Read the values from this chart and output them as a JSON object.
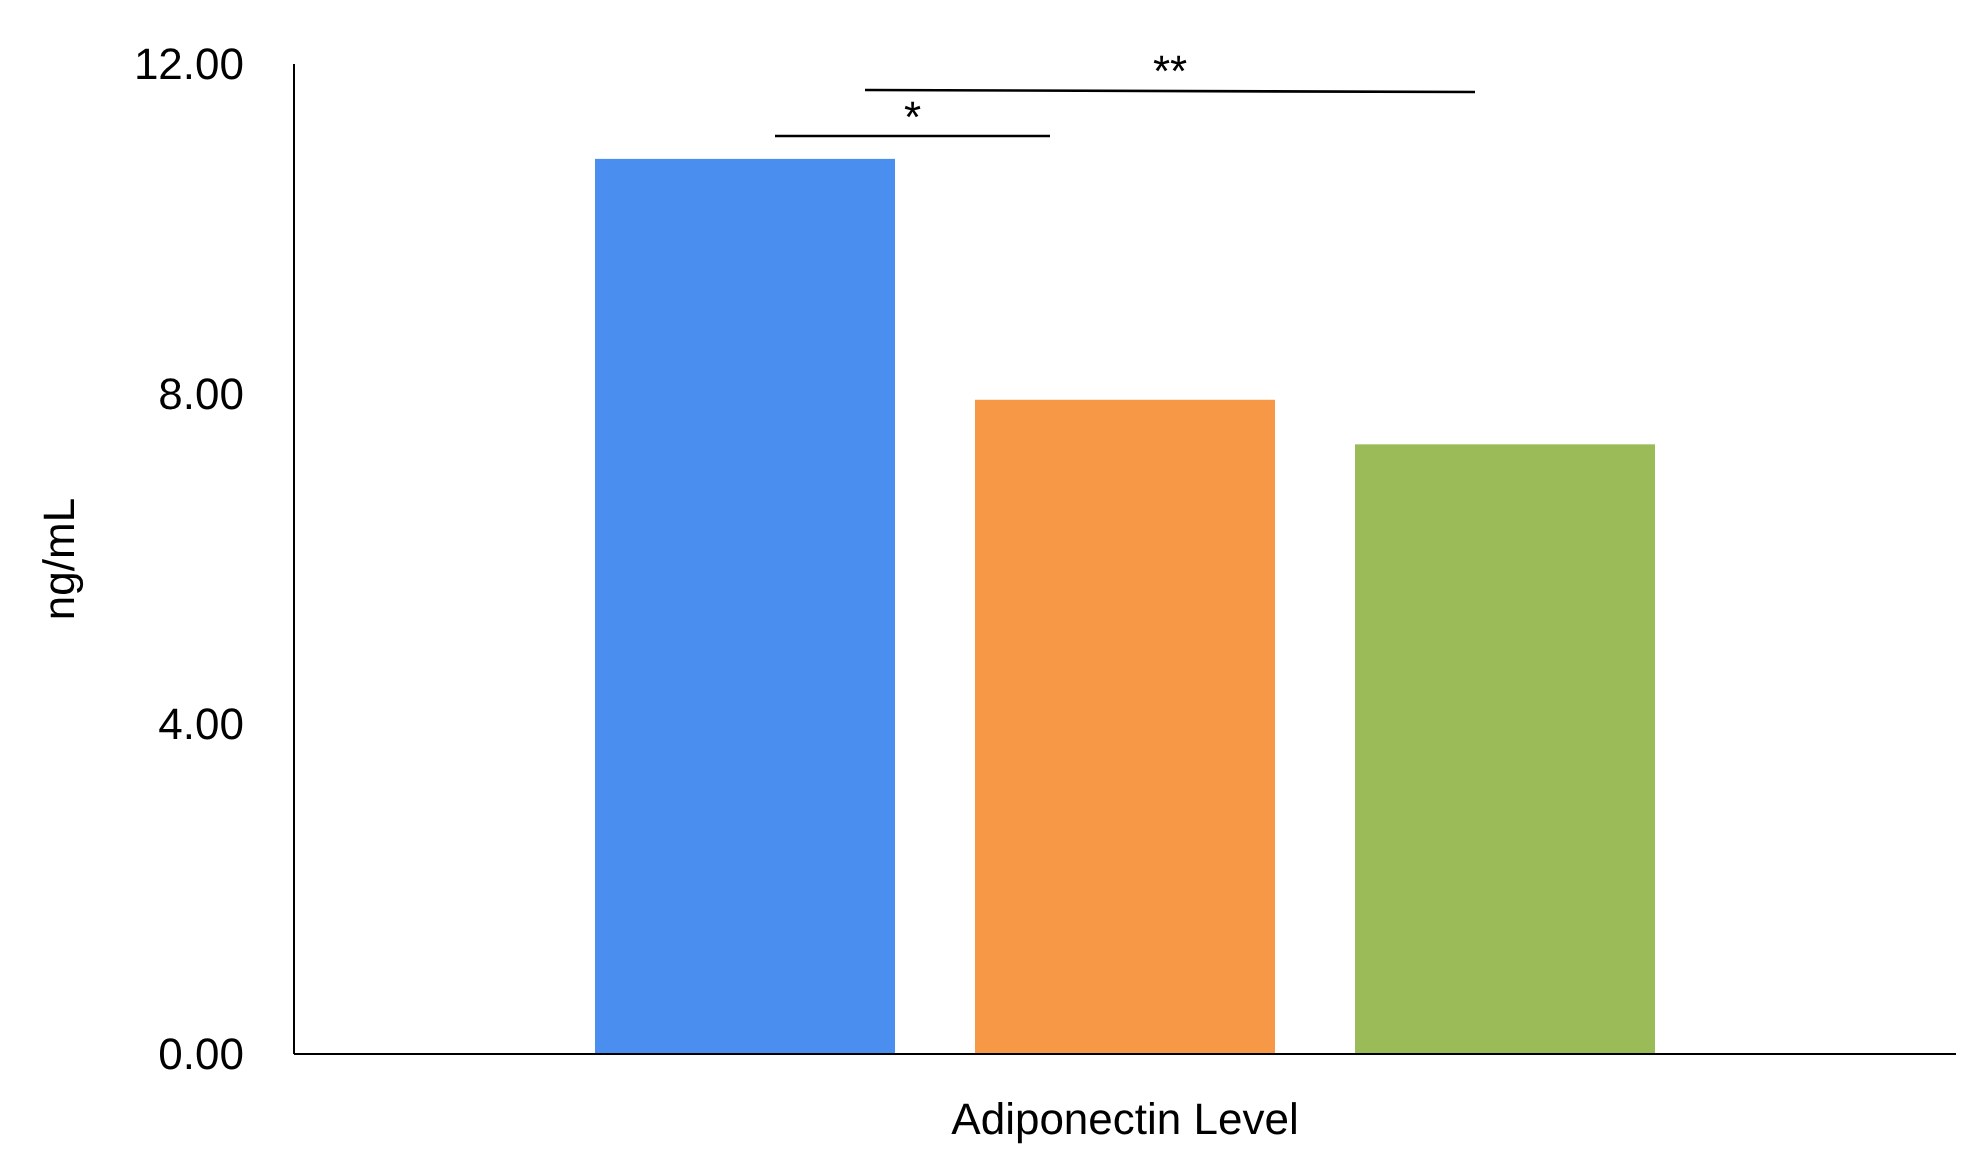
{
  "chart_data": {
    "type": "bar",
    "ylabel": "ng/mL",
    "categories": [
      "Adiponectin Level"
    ],
    "series": [
      {
        "color": "#4a8ef0",
        "values": [
          10.85
        ]
      },
      {
        "color": "#f69846",
        "values": [
          7.93
        ]
      },
      {
        "color": "#9bbb59",
        "values": [
          7.39
        ]
      }
    ],
    "ylim": [
      0,
      12
    ],
    "yticks": [
      {
        "value": 0,
        "label": "0.00"
      },
      {
        "value": 4,
        "label": "4.00"
      },
      {
        "value": 8,
        "label": "8.00"
      },
      {
        "value": 12,
        "label": "12.00"
      }
    ],
    "grid": false,
    "annotations": [
      "*",
      "**"
    ]
  }
}
